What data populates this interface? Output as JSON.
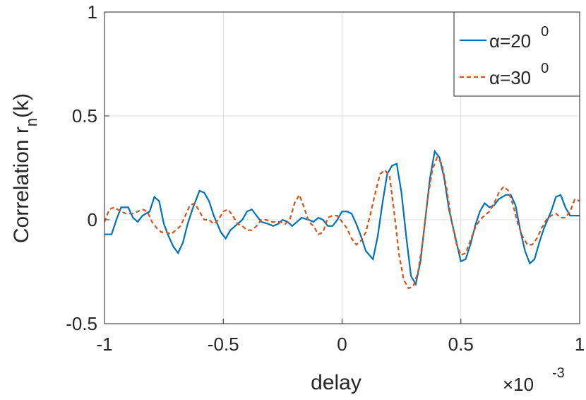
{
  "chart_data": {
    "type": "line",
    "xlabel": "delay",
    "ylabel": "Correlation r",
    "ylabel_sub": "n",
    "ylabel_tail": "(k)",
    "x_multiplier": "×10",
    "x_multiplier_exponent": "-3",
    "xlim": [
      -1,
      1
    ],
    "xticks": [
      -1,
      -0.5,
      0,
      0.5,
      1
    ],
    "ylim": [
      -0.5,
      1
    ],
    "yticks": [
      -0.5,
      0,
      0.5,
      1
    ],
    "grid": true,
    "legend": "top-right",
    "series": [
      {
        "name": "α=20",
        "name_superscript": "0",
        "color": "#0072bd",
        "dash": "solid",
        "x": [
          -1,
          -0.97,
          -0.95,
          -0.93,
          -0.9,
          -0.88,
          -0.86,
          -0.84,
          -0.81,
          -0.79,
          -0.77,
          -0.75,
          -0.73,
          -0.71,
          -0.69,
          -0.67,
          -0.65,
          -0.63,
          -0.6,
          -0.58,
          -0.56,
          -0.54,
          -0.51,
          -0.49,
          -0.47,
          -0.44,
          -0.42,
          -0.4,
          -0.38,
          -0.36,
          -0.34,
          -0.31,
          -0.29,
          -0.27,
          -0.25,
          -0.23,
          -0.21,
          -0.19,
          -0.17,
          -0.14,
          -0.12,
          -0.1,
          -0.08,
          -0.06,
          -0.04,
          -0.02,
          0,
          0.02,
          0.04,
          0.06,
          0.08,
          0.1,
          0.13,
          0.15,
          0.17,
          0.19,
          0.21,
          0.23,
          0.25,
          0.27,
          0.29,
          0.31,
          0.33,
          0.35,
          0.37,
          0.39,
          0.41,
          0.43,
          0.45,
          0.48,
          0.5,
          0.52,
          0.54,
          0.56,
          0.58,
          0.6,
          0.62,
          0.64,
          0.66,
          0.69,
          0.71,
          0.73,
          0.75,
          0.77,
          0.79,
          0.81,
          0.83,
          0.85,
          0.88,
          0.9,
          0.92,
          0.94,
          0.96,
          0.98,
          1
        ],
        "values": [
          -0.07,
          -0.07,
          0,
          0.06,
          0.06,
          0.01,
          -0.01,
          0.02,
          0.04,
          0.11,
          0.09,
          -0.02,
          -0.08,
          -0.13,
          -0.16,
          -0.11,
          -0.02,
          0.05,
          0.14,
          0.13,
          0.09,
          0.02,
          -0.06,
          -0.09,
          -0.05,
          -0.02,
          0,
          0.04,
          0.05,
          0.02,
          -0.01,
          -0.02,
          -0.03,
          -0.02,
          0,
          -0.01,
          -0.03,
          -0.01,
          0.01,
          0,
          -0.01,
          0.01,
          0,
          -0.03,
          -0.03,
          0,
          0.04,
          0.04,
          0.03,
          -0.02,
          -0.08,
          -0.15,
          -0.19,
          -0.08,
          0.08,
          0.22,
          0.26,
          0.27,
          0.13,
          -0.08,
          -0.27,
          -0.31,
          -0.2,
          0,
          0.2,
          0.33,
          0.3,
          0.2,
          0.05,
          -0.1,
          -0.2,
          -0.19,
          -0.12,
          -0.03,
          0.04,
          0.08,
          0.06,
          0.07,
          0.1,
          0.12,
          0.12,
          0.07,
          -0.05,
          -0.15,
          -0.21,
          -0.19,
          -0.11,
          -0.04,
          0.04,
          0.11,
          0.12,
          0.06,
          0.02,
          0.02,
          0.02
        ]
      },
      {
        "name": "α=30",
        "name_superscript": "0",
        "color": "#d95319",
        "dash": "dashed",
        "x": [
          -1,
          -0.98,
          -0.96,
          -0.93,
          -0.91,
          -0.88,
          -0.86,
          -0.84,
          -0.82,
          -0.8,
          -0.78,
          -0.76,
          -0.74,
          -0.72,
          -0.7,
          -0.68,
          -0.66,
          -0.64,
          -0.62,
          -0.6,
          -0.58,
          -0.56,
          -0.54,
          -0.52,
          -0.5,
          -0.48,
          -0.46,
          -0.44,
          -0.42,
          -0.4,
          -0.38,
          -0.36,
          -0.34,
          -0.32,
          -0.3,
          -0.28,
          -0.26,
          -0.24,
          -0.22,
          -0.2,
          -0.18,
          -0.16,
          -0.14,
          -0.12,
          -0.1,
          -0.08,
          -0.06,
          -0.04,
          -0.02,
          0,
          0.02,
          0.04,
          0.06,
          0.08,
          0.1,
          0.12,
          0.14,
          0.16,
          0.18,
          0.2,
          0.22,
          0.24,
          0.26,
          0.28,
          0.3,
          0.32,
          0.34,
          0.36,
          0.38,
          0.4,
          0.42,
          0.44,
          0.46,
          0.48,
          0.5,
          0.52,
          0.54,
          0.56,
          0.58,
          0.6,
          0.62,
          0.64,
          0.66,
          0.68,
          0.7,
          0.72,
          0.74,
          0.76,
          0.78,
          0.8,
          0.82,
          0.84,
          0.86,
          0.88,
          0.9,
          0.92,
          0.94,
          0.96,
          0.98,
          1
        ],
        "values": [
          -0.01,
          0.05,
          0.06,
          0.04,
          0.03,
          0.03,
          0.04,
          0.05,
          0.04,
          -0.01,
          -0.04,
          -0.06,
          -0.06,
          -0.07,
          -0.05,
          -0.03,
          0.02,
          0.07,
          0.08,
          0.04,
          0,
          0,
          -0.02,
          0,
          0.04,
          0.05,
          0.02,
          -0.02,
          -0.03,
          -0.05,
          -0.05,
          -0.03,
          0,
          0,
          -0.01,
          -0.01,
          -0.01,
          -0.02,
          0,
          0.08,
          0.12,
          0.06,
          -0.01,
          -0.03,
          -0.07,
          -0.06,
          0.01,
          0.02,
          0.02,
          -0.01,
          -0.04,
          -0.09,
          -0.12,
          -0.1,
          -0.06,
          0.03,
          0.13,
          0.22,
          0.24,
          0.21,
          0.03,
          -0.17,
          -0.29,
          -0.33,
          -0.32,
          -0.25,
          -0.1,
          0.1,
          0.24,
          0.3,
          0.27,
          0.15,
          0,
          -0.11,
          -0.17,
          -0.16,
          -0.1,
          -0.04,
          0,
          0.02,
          0.04,
          0.08,
          0.13,
          0.16,
          0.14,
          0.07,
          -0.02,
          -0.08,
          -0.12,
          -0.12,
          -0.09,
          -0.04,
          0,
          0.02,
          0.03,
          0.01,
          0.01,
          0.04,
          0.1,
          0.09
        ]
      }
    ]
  }
}
